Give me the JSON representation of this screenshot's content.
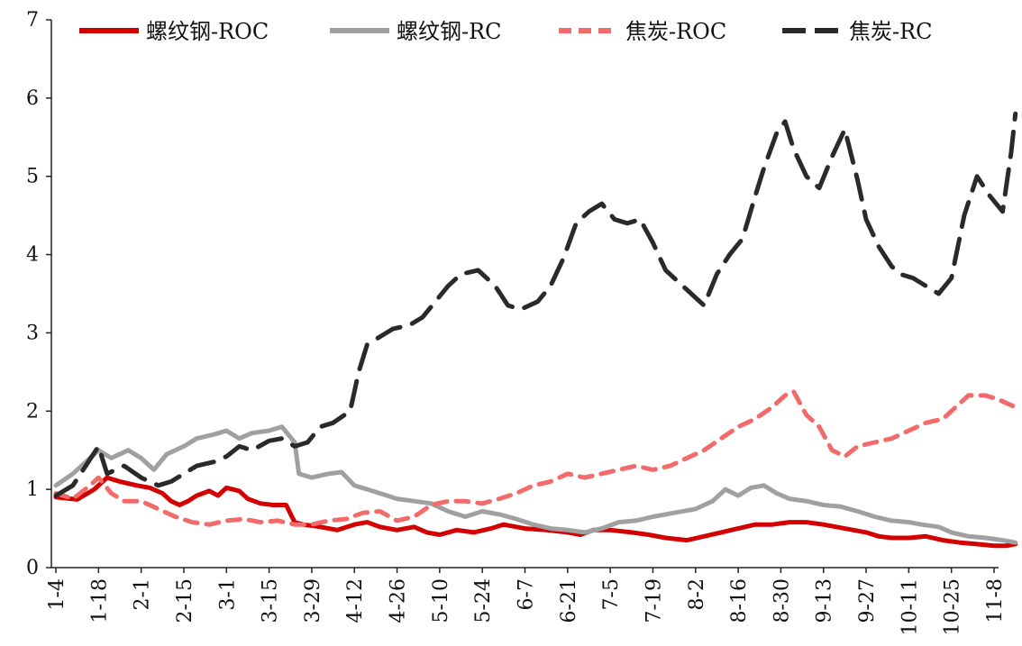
{
  "chart_data": {
    "type": "line",
    "title": "",
    "xlabel": "",
    "ylabel": "",
    "ylim": [
      0,
      7
    ],
    "yticks": [
      0,
      1,
      2,
      3,
      4,
      5,
      6,
      7
    ],
    "grid": false,
    "legend_position": "top",
    "x_tick_labels": [
      "1-4",
      "1-18",
      "2-1",
      "2-15",
      "3-1",
      "3-15",
      "3-29",
      "4-12",
      "4-26",
      "5-10",
      "5-24",
      "6-7",
      "6-21",
      "7-5",
      "7-19",
      "8-2",
      "8-16",
      "8-30",
      "9-13",
      "9-27",
      "10-11",
      "10-25",
      "11-8"
    ],
    "series": [
      {
        "name": "螺纹钢-ROC",
        "color": "#d40000",
        "dash": "solid",
        "values": [
          [
            0,
            0.9
          ],
          [
            0.5,
            0.87
          ],
          [
            0.9,
            1.0
          ],
          [
            1.2,
            1.15
          ],
          [
            1.5,
            1.1
          ],
          [
            1.9,
            1.05
          ],
          [
            2.2,
            1.02
          ],
          [
            2.5,
            0.95
          ],
          [
            2.7,
            0.85
          ],
          [
            2.9,
            0.8
          ],
          [
            3.1,
            0.85
          ],
          [
            3.3,
            0.92
          ],
          [
            3.6,
            0.98
          ],
          [
            3.8,
            0.92
          ],
          [
            4.0,
            1.02
          ],
          [
            4.3,
            0.98
          ],
          [
            4.5,
            0.88
          ],
          [
            4.8,
            0.82
          ],
          [
            5.1,
            0.8
          ],
          [
            5.4,
            0.8
          ],
          [
            5.6,
            0.58
          ],
          [
            5.8,
            0.55
          ],
          [
            6.2,
            0.52
          ],
          [
            6.6,
            0.48
          ],
          [
            7.0,
            0.55
          ],
          [
            7.3,
            0.58
          ],
          [
            7.6,
            0.52
          ],
          [
            8.0,
            0.48
          ],
          [
            8.4,
            0.52
          ],
          [
            8.7,
            0.45
          ],
          [
            9.0,
            0.42
          ],
          [
            9.4,
            0.48
          ],
          [
            9.8,
            0.45
          ],
          [
            10.2,
            0.5
          ],
          [
            10.5,
            0.55
          ],
          [
            11.0,
            0.5
          ],
          [
            11.5,
            0.48
          ],
          [
            12.0,
            0.45
          ],
          [
            12.3,
            0.42
          ],
          [
            12.6,
            0.48
          ],
          [
            13.0,
            0.48
          ],
          [
            13.5,
            0.45
          ],
          [
            13.9,
            0.42
          ],
          [
            14.3,
            0.38
          ],
          [
            14.8,
            0.35
          ],
          [
            15.2,
            0.4
          ],
          [
            15.6,
            0.45
          ],
          [
            16.0,
            0.5
          ],
          [
            16.4,
            0.55
          ],
          [
            16.8,
            0.55
          ],
          [
            17.2,
            0.58
          ],
          [
            17.6,
            0.58
          ],
          [
            18.0,
            0.55
          ],
          [
            18.5,
            0.5
          ],
          [
            19.0,
            0.45
          ],
          [
            19.3,
            0.4
          ],
          [
            19.6,
            0.38
          ],
          [
            20.0,
            0.38
          ],
          [
            20.4,
            0.4
          ],
          [
            20.8,
            0.35
          ],
          [
            21.2,
            0.32
          ],
          [
            21.6,
            0.3
          ],
          [
            22.0,
            0.28
          ],
          [
            22.3,
            0.28
          ],
          [
            22.5,
            0.3
          ]
        ]
      },
      {
        "name": "螺纹钢-RC",
        "color": "#a0a0a0",
        "dash": "solid",
        "values": [
          [
            0,
            1.05
          ],
          [
            0.4,
            1.2
          ],
          [
            0.8,
            1.4
          ],
          [
            1.0,
            1.5
          ],
          [
            1.3,
            1.4
          ],
          [
            1.7,
            1.5
          ],
          [
            2.0,
            1.4
          ],
          [
            2.3,
            1.25
          ],
          [
            2.6,
            1.45
          ],
          [
            3.0,
            1.55
          ],
          [
            3.3,
            1.65
          ],
          [
            3.7,
            1.7
          ],
          [
            4.0,
            1.75
          ],
          [
            4.3,
            1.65
          ],
          [
            4.6,
            1.72
          ],
          [
            5.0,
            1.75
          ],
          [
            5.3,
            1.8
          ],
          [
            5.6,
            1.6
          ],
          [
            5.7,
            1.2
          ],
          [
            6.0,
            1.15
          ],
          [
            6.4,
            1.2
          ],
          [
            6.7,
            1.22
          ],
          [
            7.0,
            1.05
          ],
          [
            7.3,
            1.0
          ],
          [
            7.6,
            0.95
          ],
          [
            8.0,
            0.88
          ],
          [
            8.4,
            0.85
          ],
          [
            8.8,
            0.82
          ],
          [
            9.2,
            0.72
          ],
          [
            9.6,
            0.65
          ],
          [
            10.0,
            0.72
          ],
          [
            10.4,
            0.68
          ],
          [
            10.8,
            0.62
          ],
          [
            11.2,
            0.55
          ],
          [
            11.6,
            0.5
          ],
          [
            12.0,
            0.48
          ],
          [
            12.4,
            0.45
          ],
          [
            12.8,
            0.5
          ],
          [
            13.2,
            0.58
          ],
          [
            13.6,
            0.6
          ],
          [
            14.0,
            0.65
          ],
          [
            14.5,
            0.7
          ],
          [
            15.0,
            0.75
          ],
          [
            15.4,
            0.85
          ],
          [
            15.7,
            1.0
          ],
          [
            16.0,
            0.92
          ],
          [
            16.3,
            1.02
          ],
          [
            16.6,
            1.05
          ],
          [
            16.9,
            0.95
          ],
          [
            17.2,
            0.88
          ],
          [
            17.6,
            0.85
          ],
          [
            18.0,
            0.8
          ],
          [
            18.4,
            0.78
          ],
          [
            18.8,
            0.72
          ],
          [
            19.2,
            0.65
          ],
          [
            19.6,
            0.6
          ],
          [
            20.0,
            0.58
          ],
          [
            20.3,
            0.55
          ],
          [
            20.7,
            0.52
          ],
          [
            21.0,
            0.45
          ],
          [
            21.4,
            0.4
          ],
          [
            21.8,
            0.38
          ],
          [
            22.2,
            0.35
          ],
          [
            22.5,
            0.32
          ]
        ]
      },
      {
        "name": "焦炭-ROC",
        "color": "#f26a6a",
        "dash": "dashed",
        "values": [
          [
            0,
            0.95
          ],
          [
            0.4,
            0.88
          ],
          [
            0.8,
            1.05
          ],
          [
            1.0,
            1.15
          ],
          [
            1.3,
            0.95
          ],
          [
            1.6,
            0.85
          ],
          [
            2.0,
            0.85
          ],
          [
            2.4,
            0.75
          ],
          [
            2.8,
            0.65
          ],
          [
            3.2,
            0.58
          ],
          [
            3.6,
            0.55
          ],
          [
            4.0,
            0.6
          ],
          [
            4.4,
            0.62
          ],
          [
            4.8,
            0.58
          ],
          [
            5.2,
            0.6
          ],
          [
            5.6,
            0.55
          ],
          [
            6.0,
            0.55
          ],
          [
            6.4,
            0.6
          ],
          [
            6.8,
            0.62
          ],
          [
            7.2,
            0.7
          ],
          [
            7.6,
            0.72
          ],
          [
            8.0,
            0.6
          ],
          [
            8.4,
            0.65
          ],
          [
            8.8,
            0.8
          ],
          [
            9.2,
            0.85
          ],
          [
            9.6,
            0.85
          ],
          [
            10.0,
            0.82
          ],
          [
            10.4,
            0.88
          ],
          [
            10.8,
            0.95
          ],
          [
            11.2,
            1.05
          ],
          [
            11.6,
            1.1
          ],
          [
            12.0,
            1.2
          ],
          [
            12.4,
            1.15
          ],
          [
            12.8,
            1.2
          ],
          [
            13.2,
            1.25
          ],
          [
            13.6,
            1.3
          ],
          [
            14.0,
            1.25
          ],
          [
            14.4,
            1.3
          ],
          [
            14.8,
            1.4
          ],
          [
            15.2,
            1.5
          ],
          [
            15.6,
            1.65
          ],
          [
            16.0,
            1.8
          ],
          [
            16.4,
            1.9
          ],
          [
            16.8,
            2.05
          ],
          [
            17.1,
            2.2
          ],
          [
            17.3,
            2.25
          ],
          [
            17.6,
            1.95
          ],
          [
            17.9,
            1.8
          ],
          [
            18.2,
            1.5
          ],
          [
            18.5,
            1.42
          ],
          [
            18.8,
            1.55
          ],
          [
            19.2,
            1.6
          ],
          [
            19.6,
            1.65
          ],
          [
            20.0,
            1.75
          ],
          [
            20.4,
            1.85
          ],
          [
            20.8,
            1.9
          ],
          [
            21.1,
            2.05
          ],
          [
            21.4,
            2.2
          ],
          [
            21.8,
            2.2
          ],
          [
            22.1,
            2.15
          ],
          [
            22.5,
            2.05
          ]
        ]
      },
      {
        "name": "焦炭-RC",
        "color": "#2a2a2a",
        "dash": "longdash",
        "values": [
          [
            0,
            0.92
          ],
          [
            0.4,
            1.05
          ],
          [
            0.7,
            1.3
          ],
          [
            1.0,
            1.55
          ],
          [
            1.2,
            1.2
          ],
          [
            1.6,
            1.3
          ],
          [
            2.0,
            1.15
          ],
          [
            2.4,
            1.05
          ],
          [
            2.7,
            1.1
          ],
          [
            3.0,
            1.2
          ],
          [
            3.3,
            1.3
          ],
          [
            3.7,
            1.35
          ],
          [
            4.0,
            1.42
          ],
          [
            4.3,
            1.55
          ],
          [
            4.6,
            1.5
          ],
          [
            5.0,
            1.62
          ],
          [
            5.3,
            1.65
          ],
          [
            5.6,
            1.55
          ],
          [
            5.9,
            1.6
          ],
          [
            6.2,
            1.8
          ],
          [
            6.5,
            1.85
          ],
          [
            6.9,
            2.0
          ],
          [
            7.1,
            2.5
          ],
          [
            7.3,
            2.85
          ],
          [
            7.6,
            2.95
          ],
          [
            7.9,
            3.05
          ],
          [
            8.3,
            3.1
          ],
          [
            8.6,
            3.2
          ],
          [
            8.9,
            3.4
          ],
          [
            9.2,
            3.6
          ],
          [
            9.5,
            3.75
          ],
          [
            9.9,
            3.8
          ],
          [
            10.3,
            3.6
          ],
          [
            10.6,
            3.35
          ],
          [
            10.9,
            3.3
          ],
          [
            11.3,
            3.4
          ],
          [
            11.6,
            3.6
          ],
          [
            11.9,
            3.95
          ],
          [
            12.2,
            4.4
          ],
          [
            12.5,
            4.55
          ],
          [
            12.8,
            4.65
          ],
          [
            13.1,
            4.45
          ],
          [
            13.4,
            4.4
          ],
          [
            13.7,
            4.45
          ],
          [
            14.0,
            4.15
          ],
          [
            14.3,
            3.8
          ],
          [
            14.6,
            3.65
          ],
          [
            14.9,
            3.5
          ],
          [
            15.2,
            3.35
          ],
          [
            15.5,
            3.75
          ],
          [
            15.8,
            4.0
          ],
          [
            16.1,
            4.2
          ],
          [
            16.4,
            4.75
          ],
          [
            16.6,
            5.1
          ],
          [
            16.9,
            5.55
          ],
          [
            17.1,
            5.7
          ],
          [
            17.3,
            5.35
          ],
          [
            17.6,
            5.0
          ],
          [
            17.9,
            4.85
          ],
          [
            18.2,
            5.25
          ],
          [
            18.5,
            5.6
          ],
          [
            18.8,
            4.95
          ],
          [
            19.0,
            4.45
          ],
          [
            19.3,
            4.1
          ],
          [
            19.6,
            3.85
          ],
          [
            19.8,
            3.75
          ],
          [
            20.1,
            3.7
          ],
          [
            20.4,
            3.6
          ],
          [
            20.7,
            3.5
          ],
          [
            21.0,
            3.7
          ],
          [
            21.3,
            4.5
          ],
          [
            21.6,
            5.0
          ],
          [
            21.9,
            4.75
          ],
          [
            22.2,
            4.55
          ],
          [
            22.4,
            5.3
          ],
          [
            22.5,
            5.8
          ]
        ]
      }
    ]
  }
}
